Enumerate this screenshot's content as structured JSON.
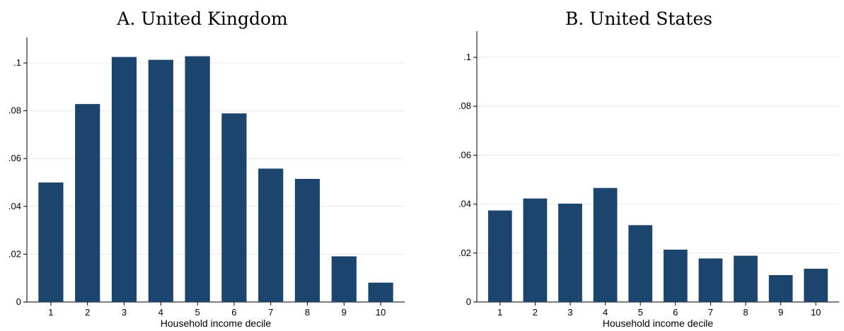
{
  "chart_data": [
    {
      "type": "bar",
      "title": "A. United Kingdom",
      "xlabel": "Household income decile",
      "ylabel": "",
      "categories": [
        "1",
        "2",
        "3",
        "4",
        "5",
        "6",
        "7",
        "8",
        "9",
        "10"
      ],
      "values": [
        0.05,
        0.0828,
        0.1025,
        0.1013,
        0.1028,
        0.0789,
        0.0558,
        0.0515,
        0.0191,
        0.0081
      ],
      "yticks": [
        0,
        0.02,
        0.04,
        0.06,
        0.08,
        0.1
      ],
      "ytick_labels": [
        "0",
        ".02",
        ".04",
        ".06",
        ".08",
        ".1"
      ],
      "ylim": [
        0,
        0.1
      ],
      "grid": true,
      "bar_color": "#1c456e",
      "grid_color": "#e6e9ee"
    },
    {
      "type": "bar",
      "title": "B. United States",
      "xlabel": "Household income decile",
      "ylabel": "",
      "categories": [
        "1",
        "2",
        "3",
        "4",
        "5",
        "6",
        "7",
        "8",
        "9",
        "10"
      ],
      "values": [
        0.0374,
        0.0423,
        0.0402,
        0.0466,
        0.0314,
        0.0214,
        0.0178,
        0.0189,
        0.011,
        0.0136
      ],
      "yticks": [
        0,
        0.02,
        0.04,
        0.06,
        0.08,
        0.1
      ],
      "ytick_labels": [
        "0",
        ".02",
        ".04",
        ".06",
        ".08",
        ".1"
      ],
      "ylim": [
        0,
        0.1
      ],
      "grid": true,
      "bar_color": "#1c456e",
      "grid_color": "#e6e9ee"
    }
  ]
}
